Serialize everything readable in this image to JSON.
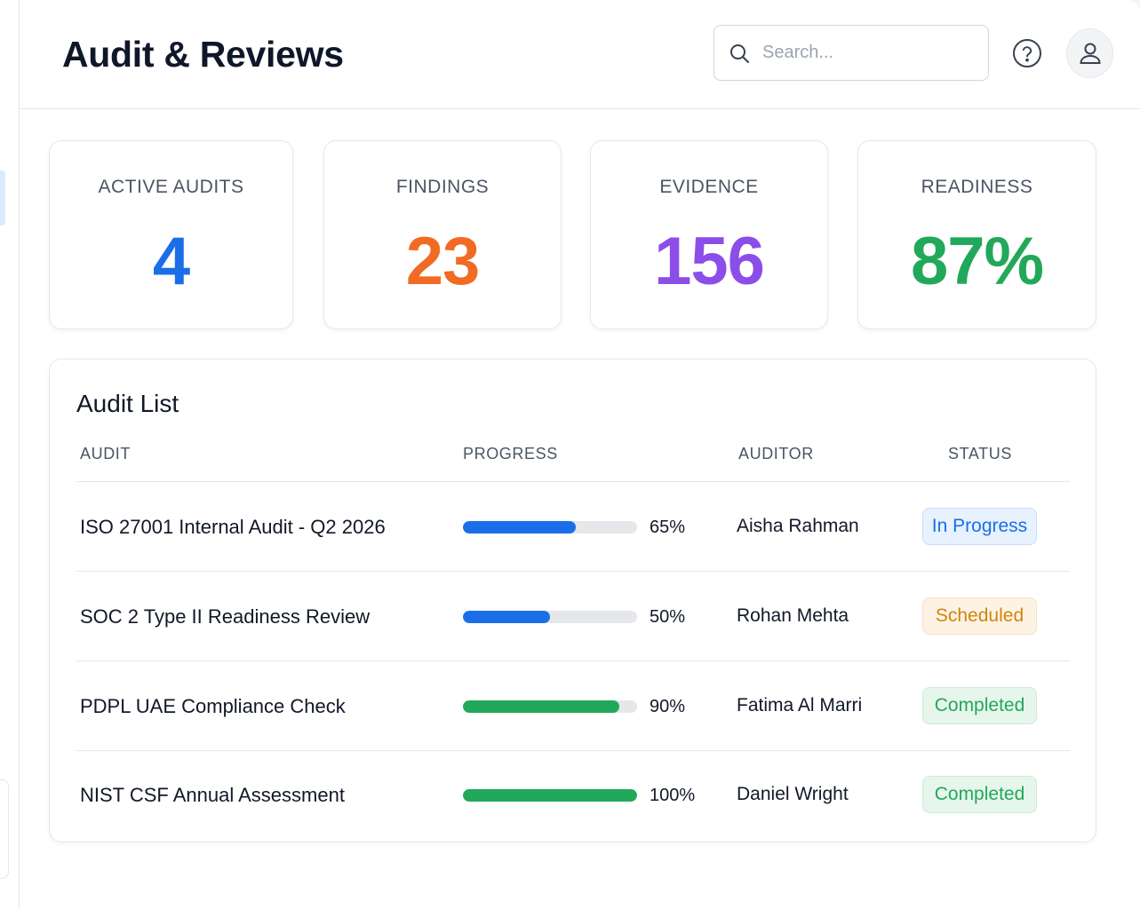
{
  "header": {
    "title": "Audit & Reviews",
    "search_placeholder": "Search...",
    "help_icon": "help-circle-icon",
    "avatar_icon": "user-icon"
  },
  "stats": [
    {
      "label": "ACTIVE AUDITS",
      "value": "4",
      "color": "#1a6fe8"
    },
    {
      "label": "FINDINGS",
      "value": "23",
      "color": "#f26b24"
    },
    {
      "label": "EVIDENCE",
      "value": "156",
      "color": "#8b4ee8"
    },
    {
      "label": "READINESS",
      "value": "87%",
      "color": "#22a85a"
    }
  ],
  "audit_list": {
    "title": "Audit List",
    "columns": [
      "AUDIT",
      "PROGRESS",
      "AUDITOR",
      "STATUS"
    ],
    "rows": [
      {
        "audit": "ISO 27001 Internal Audit - Q2 2026",
        "progress": 65,
        "progress_label": "65%",
        "auditor": "Aisha Rahman",
        "status": "In Progress",
        "bar_color": "#1a6fe8",
        "status_bg": "#e8f1fe",
        "status_border": "#c9ddfb",
        "status_color": "#1a6fe8"
      },
      {
        "audit": "SOC 2 Type II Readiness Review",
        "progress": 50,
        "progress_label": "50%",
        "auditor": "Rohan Mehta",
        "status": "Scheduled",
        "bar_color": "#1a6fe8",
        "status_bg": "#fdf3e4",
        "status_border": "#f7e2c0",
        "status_color": "#d4830e"
      },
      {
        "audit": "PDPL UAE Compliance Check",
        "progress": 90,
        "progress_label": "90%",
        "auditor": "Fatima Al Marri",
        "status": "Completed",
        "bar_color": "#22a85a",
        "status_bg": "#e6f6ec",
        "status_border": "#cdebd8",
        "status_color": "#22a85a"
      },
      {
        "audit": "NIST CSF Annual Assessment",
        "progress": 100,
        "progress_label": "100%",
        "auditor": "Daniel Wright",
        "status": "Completed",
        "bar_color": "#22a85a",
        "status_bg": "#e6f6ec",
        "status_border": "#cdebd8",
        "status_color": "#22a85a"
      }
    ]
  }
}
